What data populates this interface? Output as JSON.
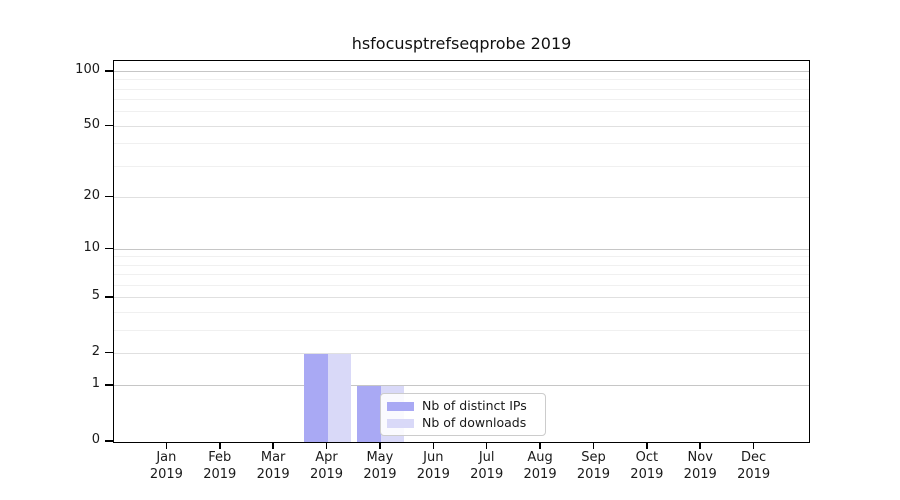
{
  "chart": {
    "title": "hsfocusptrefseqprobe 2019",
    "legend": {
      "items": [
        {
          "label": "Nb of distinct IPs",
          "color": "#a9a9f4"
        },
        {
          "label": "Nb of downloads",
          "color": "#d9d9f8"
        }
      ]
    }
  },
  "chart_data": {
    "type": "bar",
    "title": "hsfocusptrefseqprobe 2019",
    "categories": [
      "Jan 2019",
      "Feb 2019",
      "Mar 2019",
      "Apr 2019",
      "May 2019",
      "Jun 2019",
      "Jul 2019",
      "Aug 2019",
      "Sep 2019",
      "Oct 2019",
      "Nov 2019",
      "Dec 2019"
    ],
    "category_month": [
      "Jan",
      "Feb",
      "Mar",
      "Apr",
      "May",
      "Jun",
      "Jul",
      "Aug",
      "Sep",
      "Oct",
      "Nov",
      "Dec"
    ],
    "category_year": "2019",
    "series": [
      {
        "name": "Nb of distinct IPs",
        "color": "#a9a9f4",
        "values": [
          0,
          0,
          0,
          2,
          1,
          0,
          0,
          0,
          0,
          0,
          0,
          0
        ]
      },
      {
        "name": "Nb of downloads",
        "color": "#d9d9f8",
        "values": [
          0,
          0,
          0,
          2,
          1,
          0,
          0,
          0,
          0,
          0,
          0,
          0
        ]
      }
    ],
    "yscale": "log1p",
    "ylim": [
      0,
      113
    ],
    "ytick_values": [
      0,
      1,
      2,
      5,
      10,
      20,
      50,
      100
    ],
    "ytick_labels": [
      "0",
      "1",
      "2",
      "5",
      "10",
      "20",
      "50",
      "100"
    ],
    "grid": "horizontal",
    "grid_major_values": [
      1,
      10,
      100
    ],
    "grid_mid_values": [
      2,
      5,
      20,
      50
    ],
    "grid_minor_values": [
      3,
      4,
      6,
      7,
      8,
      9,
      30,
      40,
      60,
      70,
      80,
      90
    ],
    "legend_position": "lower-center-right"
  },
  "colors": {
    "background": "#ffffff",
    "axis": "#000000",
    "text": "#1a1a1a",
    "grid_major": "#c6c6c6",
    "grid_mid": "#e0e0e0",
    "grid_minor": "#f0f0f0",
    "legend_border": "#cccccc"
  }
}
